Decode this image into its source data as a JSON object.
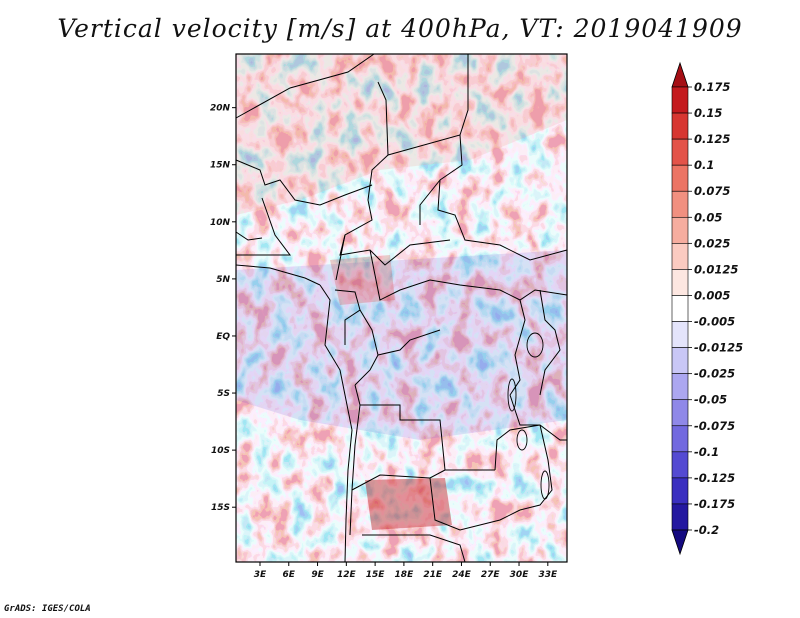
{
  "title": "Vertical velocity [m/s] at 400hPa, VT: 2019041909",
  "credit": "GrADS: IGES/COLA",
  "map": {
    "lat_labels": [
      "20N",
      "15N",
      "10N",
      "5N",
      "EQ",
      "5S",
      "10S",
      "15S"
    ],
    "lon_labels": [
      "3E",
      "6E",
      "9E",
      "12E",
      "15E",
      "18E",
      "21E",
      "24E",
      "27E",
      "30E",
      "33E"
    ],
    "lat_values": [
      20,
      15,
      10,
      5,
      0,
      -5,
      -10,
      -15
    ],
    "lon_values": [
      3,
      6,
      9,
      12,
      15,
      18,
      21,
      24,
      27,
      30,
      33
    ],
    "lat_range": [
      -19.8,
      24.7
    ],
    "lon_range": [
      0.5,
      35.0
    ]
  },
  "colorbar": {
    "levels": [
      "0.175",
      "0.15",
      "0.125",
      "0.1",
      "0.075",
      "0.05",
      "0.025",
      "0.0125",
      "0.005",
      "-0.005",
      "-0.0125",
      "-0.025",
      "-0.05",
      "-0.075",
      "-0.1",
      "-0.125",
      "-0.175",
      "-0.2"
    ],
    "colors": [
      "#a50f15",
      "#c41a1e",
      "#d73631",
      "#e35349",
      "#ec7464",
      "#f19080",
      "#f6ad9f",
      "#fbcbc1",
      "#fde7e1",
      "#ffffff",
      "#e4e4fb",
      "#c9c7f6",
      "#aca7f0",
      "#8f88e8",
      "#7269df",
      "#544ad2",
      "#3a2fc0",
      "#2418a0",
      "#140a80"
    ],
    "top_arrow_color": "#a50f15",
    "bottom_arrow_color": "#140a80"
  }
}
